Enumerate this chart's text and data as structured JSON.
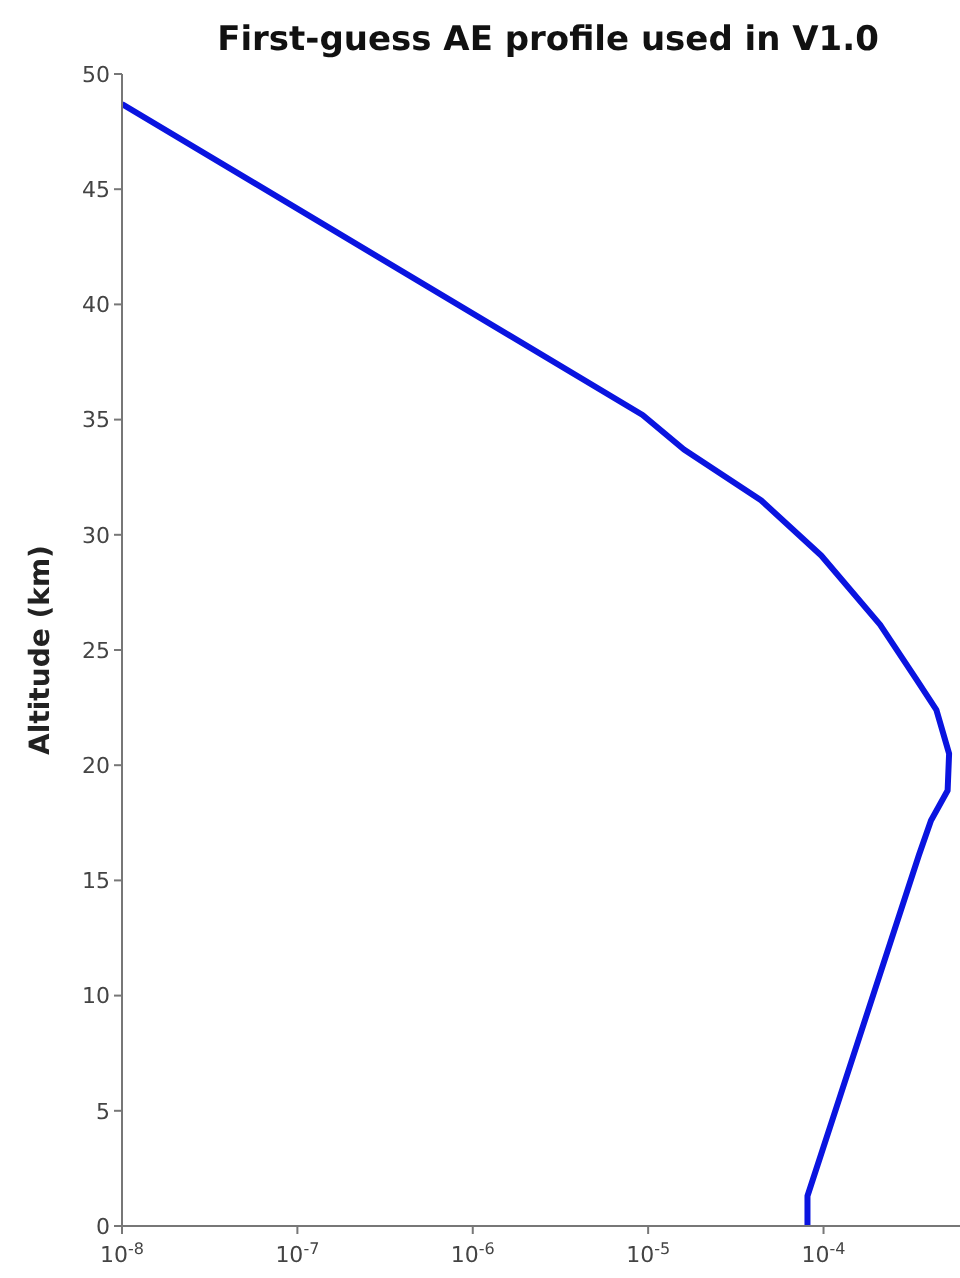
{
  "chart_data": {
    "type": "line",
    "title": "First-guess AE profile used in V1.0",
    "ylabel": "Altitude (km)",
    "log": "x",
    "series": [
      {
        "color": "#0a14e0",
        "x": [
          8.1e-05,
          8.1e-05,
          0.00035,
          0.00041,
          0.00051,
          0.00052,
          0.00044,
          0.00034,
          0.00021,
          9.7e-05,
          4.4e-05,
          1.6e-05,
          9.3e-06,
          1e-08
        ],
        "values": [
          0,
          1.3,
          16.1,
          17.6,
          18.9,
          20.5,
          22.4,
          23.7,
          26.1,
          29.1,
          31.5,
          33.7,
          35.2,
          48.7
        ]
      }
    ],
    "xlim": [
      1e-08,
      0.0006
    ],
    "xticks": [
      {
        "value": 1e-08,
        "label": "10$^{-8}$"
      },
      {
        "value": 1e-07,
        "label": "10$^{-7}$"
      },
      {
        "value": 1e-06,
        "label": "10$^{-6}$"
      },
      {
        "value": 1e-05,
        "label": "10$^{-5}$"
      },
      {
        "value": 0.0001,
        "label": "10$^{-4}$"
      }
    ],
    "ylim": [
      0,
      50
    ],
    "yticks": [
      0,
      5,
      10,
      15,
      20,
      25,
      30,
      35,
      40,
      45,
      50
    ],
    "grid": false,
    "legend": false,
    "marker": "none",
    "line_style": "solid"
  }
}
